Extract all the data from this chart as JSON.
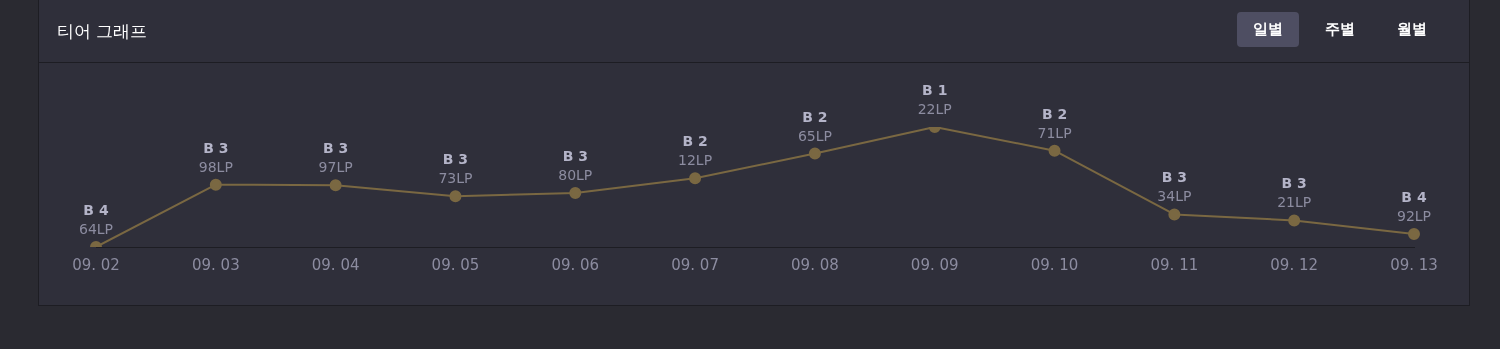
{
  "chart_data": {
    "type": "line",
    "title": "티어 그래프",
    "annotations": [
      "일별",
      "주별",
      "월별"
    ],
    "categories": [
      "09. 02",
      "09. 03",
      "09. 04",
      "09. 05",
      "09. 06",
      "09. 07",
      "09. 08",
      "09. 09",
      "09. 10",
      "09. 11",
      "09. 12",
      "09. 13"
    ],
    "values": [
      64,
      198,
      197,
      173,
      180,
      212,
      265,
      322,
      271,
      134,
      121,
      92
    ],
    "value_labels": [
      "B 4\n64LP",
      "B 3\n98LP",
      "B 3\n97LP",
      "B 3\n73LP",
      "B 3\n80LP",
      "B 2\n12LP",
      "B 2\n65LP",
      "B 1\n22LP",
      "B 2\n71LP",
      "B 3\n34LP",
      "B 3\n21LP",
      "B 4\n92LP"
    ],
    "color": "#7a6842",
    "marker": "circle",
    "grid": false,
    "legend": false
  }
}
